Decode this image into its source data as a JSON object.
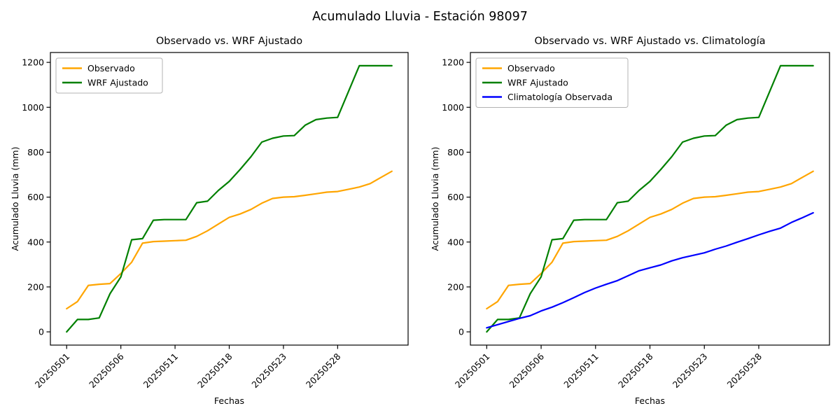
{
  "header": {
    "suptitle": "Acumulado Lluvia - Estación 98097"
  },
  "chart_data": [
    {
      "type": "line",
      "title": "Observado vs. WRF Ajustado",
      "xlabel": "Fechas",
      "ylabel": "Acumulado Lluvia (mm)",
      "x_tick_labels": [
        "20250501",
        "20250506",
        "20250511",
        "20250518",
        "20250523",
        "20250528"
      ],
      "x_tick_positions": [
        0,
        5,
        10,
        15,
        20,
        25
      ],
      "x_tick_rotation": 45,
      "y_ticks": [
        0,
        200,
        400,
        600,
        800,
        1000,
        1200
      ],
      "xlim": [
        -1.5,
        31.5
      ],
      "ylim": [
        -59,
        1244
      ],
      "grid": false,
      "legend_position": "upper-left",
      "series": [
        {
          "name": "Observado",
          "color": "#FFA500",
          "values": [
            103,
            135,
            207,
            212,
            215,
            260,
            310,
            395,
            402,
            404,
            406,
            408,
            425,
            450,
            480,
            510,
            525,
            545,
            573,
            594,
            600,
            602,
            608,
            615,
            622,
            625,
            635,
            645,
            660,
            688,
            715
          ]
        },
        {
          "name": "WRF Ajustado",
          "color": "#008000",
          "values": [
            0,
            55,
            55,
            62,
            170,
            245,
            410,
            415,
            497,
            500,
            500,
            500,
            575,
            582,
            630,
            670,
            723,
            780,
            845,
            862,
            872,
            874,
            920,
            945,
            952,
            955,
            1070,
            1185,
            1185,
            1185,
            1185
          ]
        }
      ]
    },
    {
      "type": "line",
      "title": "Observado vs. WRF Ajustado vs. Climatología",
      "xlabel": "Fechas",
      "ylabel": "Acumulado Lluvia (mm)",
      "x_tick_labels": [
        "20250501",
        "20250506",
        "20250511",
        "20250518",
        "20250523",
        "20250528"
      ],
      "x_tick_positions": [
        0,
        5,
        10,
        15,
        20,
        25
      ],
      "x_tick_rotation": 45,
      "y_ticks": [
        0,
        200,
        400,
        600,
        800,
        1000,
        1200
      ],
      "xlim": [
        -1.5,
        31.5
      ],
      "ylim": [
        -59,
        1244
      ],
      "grid": false,
      "legend_position": "upper-left",
      "series": [
        {
          "name": "Observado",
          "color": "#FFA500",
          "values": [
            103,
            135,
            207,
            212,
            215,
            260,
            310,
            395,
            402,
            404,
            406,
            408,
            425,
            450,
            480,
            510,
            525,
            545,
            573,
            594,
            600,
            602,
            608,
            615,
            622,
            625,
            635,
            645,
            660,
            688,
            715
          ]
        },
        {
          "name": "WRF Ajustado",
          "color": "#008000",
          "values": [
            0,
            55,
            55,
            62,
            170,
            245,
            410,
            415,
            497,
            500,
            500,
            500,
            575,
            582,
            630,
            670,
            723,
            780,
            845,
            862,
            872,
            874,
            920,
            945,
            952,
            955,
            1070,
            1185,
            1185,
            1185,
            1185
          ]
        },
        {
          "name": "Climatología Observada",
          "color": "#0000FF",
          "values": [
            18,
            32,
            46,
            60,
            72,
            93,
            110,
            130,
            152,
            175,
            195,
            212,
            228,
            250,
            272,
            285,
            298,
            316,
            330,
            341,
            352,
            368,
            382,
            399,
            415,
            432,
            448,
            462,
            487,
            508,
            530
          ]
        }
      ]
    }
  ]
}
